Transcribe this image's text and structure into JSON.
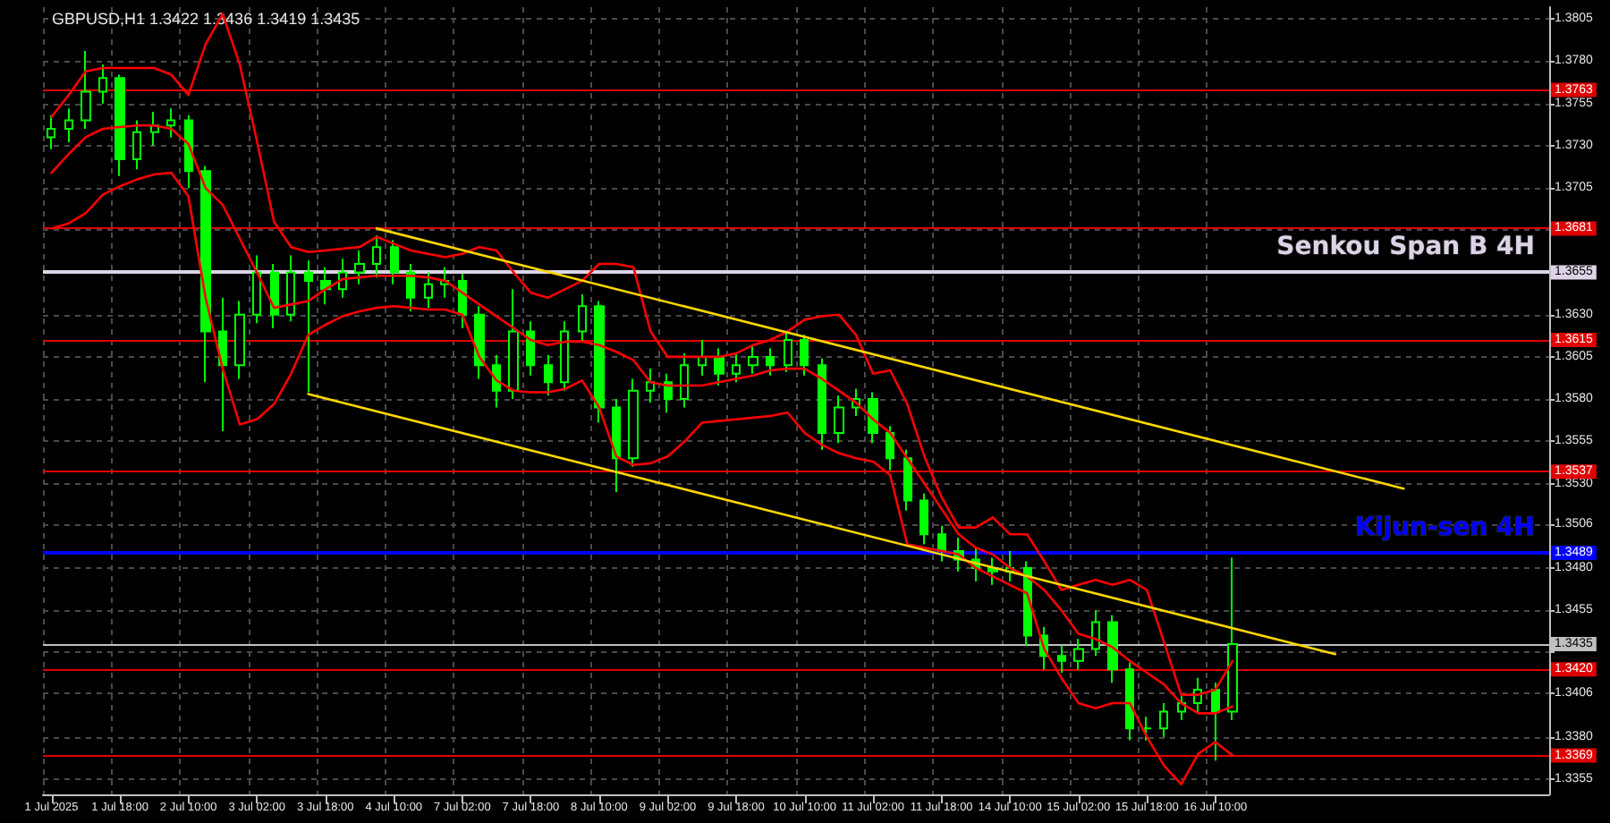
{
  "chart_data": {
    "type": "candlestick",
    "title": "GBPUSD,H1 1.3422 1.3436 1.3419 1.3435",
    "color": "#00ff00",
    "categories": [
      "1 Jul 2025",
      null,
      null,
      null,
      "1 Jul 18:00",
      null,
      null,
      null,
      "2 Jul 10:00",
      null,
      null,
      null,
      "3 Jul 02:00",
      null,
      null,
      null,
      "3 Jul 18:00",
      null,
      null,
      null,
      "4 Jul 10:00",
      null,
      null,
      null,
      "7 Jul 02:00",
      null,
      null,
      null,
      "7 Jul 18:00",
      null,
      null,
      null,
      "8 Jul 10:00",
      null,
      null,
      null,
      "9 Jul 02:00",
      null,
      null,
      null,
      "9 Jul 18:00",
      null,
      null,
      null,
      "10 Jul 10:00",
      null,
      null,
      null,
      "11 Jul 02:00",
      null,
      null,
      null,
      "11 Jul 18:00",
      null,
      null,
      null,
      "14 Jul 10:00",
      null,
      null,
      null,
      "15 Jul 02:00",
      null,
      null,
      null,
      "15 Jul 18:00",
      null,
      null,
      null,
      "16 Jul 10:00",
      null,
      null,
      null,
      null,
      null,
      null,
      null,
      null,
      null,
      null,
      null,
      null,
      null,
      null,
      null,
      null,
      null,
      null,
      null
    ],
    "ohlc": [
      [
        1.3735,
        1.3748,
        1.3728,
        1.374
      ],
      [
        1.374,
        1.3752,
        1.3732,
        1.3745
      ],
      [
        1.3745,
        1.3786,
        1.374,
        1.3762
      ],
      [
        1.3762,
        1.3778,
        1.3755,
        1.377
      ],
      [
        1.377,
        1.3772,
        1.3712,
        1.3722
      ],
      [
        1.3722,
        1.3745,
        1.3716,
        1.3738
      ],
      [
        1.3738,
        1.375,
        1.373,
        1.3742
      ],
      [
        1.3742,
        1.3752,
        1.3735,
        1.3745
      ],
      [
        1.3745,
        1.3748,
        1.3705,
        1.3715
      ],
      [
        1.3715,
        1.3718,
        1.359,
        1.362
      ],
      [
        1.362,
        1.364,
        1.3561,
        1.36
      ],
      [
        1.36,
        1.3638,
        1.3592,
        1.363
      ],
      [
        1.363,
        1.3665,
        1.3625,
        1.3655
      ],
      [
        1.3655,
        1.366,
        1.3622,
        1.363
      ],
      [
        1.363,
        1.3665,
        1.3626,
        1.3655
      ],
      [
        1.3655,
        1.3662,
        1.3584,
        1.365
      ],
      [
        1.365,
        1.3658,
        1.3636,
        1.3645
      ],
      [
        1.3645,
        1.3663,
        1.364,
        1.3655
      ],
      [
        1.3655,
        1.3668,
        1.3648,
        1.366
      ],
      [
        1.366,
        1.3677,
        1.3652,
        1.367
      ],
      [
        1.367,
        1.3674,
        1.3648,
        1.3655
      ],
      [
        1.3655,
        1.366,
        1.3632,
        1.364
      ],
      [
        1.364,
        1.3655,
        1.3634,
        1.3648
      ],
      [
        1.3648,
        1.3658,
        1.364,
        1.365
      ],
      [
        1.365,
        1.3654,
        1.3622,
        1.363
      ],
      [
        1.363,
        1.3635,
        1.3592,
        1.36
      ],
      [
        1.36,
        1.3606,
        1.3575,
        1.3585
      ],
      [
        1.3585,
        1.3645,
        1.358,
        1.362
      ],
      [
        1.362,
        1.3626,
        1.3594,
        1.36
      ],
      [
        1.36,
        1.3606,
        1.3582,
        1.359
      ],
      [
        1.359,
        1.3626,
        1.3585,
        1.362
      ],
      [
        1.362,
        1.3642,
        1.3614,
        1.3635
      ],
      [
        1.3635,
        1.3638,
        1.3566,
        1.3575
      ],
      [
        1.3575,
        1.358,
        1.3525,
        1.3545
      ],
      [
        1.3545,
        1.3592,
        1.354,
        1.3585
      ],
      [
        1.3585,
        1.3598,
        1.3578,
        1.359
      ],
      [
        1.359,
        1.3595,
        1.3572,
        1.358
      ],
      [
        1.358,
        1.3607,
        1.3575,
        1.36
      ],
      [
        1.36,
        1.3615,
        1.3594,
        1.3605
      ],
      [
        1.3605,
        1.361,
        1.3588,
        1.3595
      ],
      [
        1.3595,
        1.3607,
        1.359,
        1.36
      ],
      [
        1.36,
        1.3612,
        1.3595,
        1.3605
      ],
      [
        1.3605,
        1.361,
        1.3594,
        1.36
      ],
      [
        1.36,
        1.362,
        1.3596,
        1.3615
      ],
      [
        1.3615,
        1.3618,
        1.3594,
        1.36
      ],
      [
        1.36,
        1.3604,
        1.355,
        1.356
      ],
      [
        1.356,
        1.3582,
        1.3554,
        1.3575
      ],
      [
        1.3575,
        1.3586,
        1.357,
        1.358
      ],
      [
        1.358,
        1.3584,
        1.3554,
        1.356
      ],
      [
        1.356,
        1.3564,
        1.3538,
        1.3545
      ],
      [
        1.3545,
        1.355,
        1.3514,
        1.352
      ],
      [
        1.352,
        1.3524,
        1.3494,
        1.35
      ],
      [
        1.35,
        1.3505,
        1.3484,
        1.349
      ],
      [
        1.349,
        1.3498,
        1.3478,
        1.3485
      ],
      [
        1.3485,
        1.3492,
        1.3472,
        1.348
      ],
      [
        1.348,
        1.3486,
        1.347,
        1.3478
      ],
      [
        1.3478,
        1.349,
        1.3472,
        1.348
      ],
      [
        1.348,
        1.3484,
        1.3434,
        1.344
      ],
      [
        1.344,
        1.3445,
        1.342,
        1.3428
      ],
      [
        1.3428,
        1.3434,
        1.3418,
        1.3425
      ],
      [
        1.3425,
        1.3438,
        1.342,
        1.3432
      ],
      [
        1.3432,
        1.3455,
        1.3428,
        1.3448
      ],
      [
        1.3448,
        1.3452,
        1.3412,
        1.342
      ],
      [
        1.342,
        1.3424,
        1.3378,
        1.3385
      ],
      [
        1.3385,
        1.3392,
        1.3378,
        1.3385
      ],
      [
        1.3385,
        1.34,
        1.338,
        1.3395
      ],
      [
        1.3395,
        1.3405,
        1.339,
        1.34
      ],
      [
        1.34,
        1.3415,
        1.3394,
        1.3408
      ],
      [
        1.3408,
        1.3412,
        1.3366,
        1.3395
      ],
      [
        1.3395,
        1.3486,
        1.339,
        1.3435
      ],
      null,
      null,
      null,
      null,
      null,
      null,
      null,
      null,
      null,
      null,
      null,
      null,
      null,
      null,
      null,
      null,
      null,
      null
    ],
    "series": [
      {
        "type": "line",
        "color": "#ff0000",
        "values": [
          1.3747,
          1.376,
          1.3774,
          1.3776,
          1.3776,
          1.3776,
          1.3776,
          1.3772,
          1.376,
          1.379,
          1.3808,
          1.3778,
          1.3733,
          1.3685,
          1.367,
          1.3667,
          1.3668,
          1.3669,
          1.367,
          1.3676,
          1.3672,
          1.3668,
          1.3666,
          1.3664,
          1.3666,
          1.367,
          1.3668,
          1.3655,
          1.3643,
          1.364,
          1.3645,
          1.365,
          1.366,
          1.366,
          1.3658,
          1.362,
          1.3605,
          1.3605,
          1.3605,
          1.3605,
          1.3607,
          1.3612,
          1.3615,
          1.362,
          1.3627,
          1.3629,
          1.363,
          1.3618,
          1.3595,
          1.3597,
          1.3577,
          1.3546,
          1.3522,
          1.3504,
          1.3504,
          1.351,
          1.35,
          1.35,
          1.3484,
          1.3467,
          1.347,
          1.3473,
          1.347,
          1.3473,
          1.3467,
          1.3436,
          1.3405,
          1.3405,
          1.3408,
          1.3425,
          null,
          null,
          null,
          null,
          null,
          null,
          null,
          null,
          null,
          null,
          null,
          null,
          null,
          null,
          null,
          null,
          null,
          null
        ]
      },
      {
        "type": "line",
        "color": "#ff0000",
        "values": [
          1.3714,
          1.3725,
          1.3735,
          1.374,
          1.3741,
          1.3742,
          1.3742,
          1.374,
          1.3731,
          1.3705,
          1.3695,
          1.3675,
          1.3655,
          1.3634,
          1.3636,
          1.3638,
          1.3645,
          1.3651,
          1.3652,
          1.3653,
          1.3653,
          1.3653,
          1.3652,
          1.365,
          1.3643,
          1.3636,
          1.3629,
          1.3622,
          1.3615,
          1.3612,
          1.3614,
          1.3614,
          1.3612,
          1.3608,
          1.3603,
          1.359,
          1.3588,
          1.3588,
          1.3588,
          1.359,
          1.3592,
          1.3594,
          1.3597,
          1.3598,
          1.3598,
          1.3592,
          1.3585,
          1.3578,
          1.3568,
          1.356,
          1.3545,
          1.353,
          1.3515,
          1.35,
          1.3492,
          1.3488,
          1.348,
          1.3475,
          1.3467,
          1.3455,
          1.3441,
          1.3438,
          1.3433,
          1.3425,
          1.3418,
          1.3411,
          1.34,
          1.3394,
          1.3394,
          1.3398,
          null,
          null,
          null,
          null,
          null,
          null,
          null,
          null,
          null,
          null,
          null,
          null,
          null,
          null,
          null,
          null,
          null,
          null
        ]
      },
      {
        "type": "line",
        "color": "#ff0000",
        "values": [
          1.3681,
          1.3684,
          1.369,
          1.3701,
          1.3706,
          1.371,
          1.3713,
          1.3714,
          1.37,
          1.364,
          1.3598,
          1.3565,
          1.3568,
          1.3577,
          1.3595,
          1.3618,
          1.3624,
          1.3629,
          1.3632,
          1.3634,
          1.3635,
          1.3634,
          1.3633,
          1.3633,
          1.363,
          1.3605,
          1.3591,
          1.3585,
          1.3584,
          1.3584,
          1.3586,
          1.3591,
          1.3575,
          1.3546,
          1.3541,
          1.3542,
          1.3546,
          1.3555,
          1.3566,
          1.3567,
          1.3568,
          1.3569,
          1.357,
          1.3572,
          1.356,
          1.3553,
          1.3548,
          1.3545,
          1.3543,
          1.3535,
          1.3494,
          1.3492,
          1.349,
          1.3488,
          1.348,
          1.3475,
          1.347,
          1.3465,
          1.3432,
          1.3415,
          1.34,
          1.3397,
          1.34,
          1.34,
          1.338,
          1.3363,
          1.3352,
          1.337,
          1.3377,
          1.3369,
          null,
          null,
          null,
          null,
          null,
          null,
          null,
          null,
          null,
          null,
          null,
          null,
          null,
          null,
          null,
          null,
          null,
          null
        ]
      },
      {
        "type": "line",
        "color": "#ffd700",
        "values": [
          null,
          null,
          null,
          null,
          null,
          null,
          null,
          null,
          null,
          null,
          null,
          null,
          null,
          null,
          null,
          null,
          null,
          null,
          null,
          1.3681,
          null,
          null,
          null,
          null,
          null,
          null,
          null,
          null,
          null,
          null,
          null,
          null,
          null,
          null,
          null,
          null,
          null,
          null,
          null,
          null,
          null,
          null,
          null,
          null,
          null,
          null,
          null,
          null,
          null,
          null,
          null,
          null,
          null,
          null,
          null,
          null,
          null,
          null,
          null,
          null,
          null,
          null,
          null,
          null,
          null,
          null,
          null,
          null,
          null,
          null,
          null,
          null,
          null,
          null,
          null,
          null,
          null,
          null,
          null,
          1.3527,
          null,
          null,
          null,
          null,
          null,
          null,
          null,
          null
        ]
      },
      {
        "type": "line",
        "color": "#ffd700",
        "values": [
          null,
          null,
          null,
          null,
          null,
          null,
          null,
          null,
          null,
          null,
          null,
          null,
          null,
          null,
          null,
          1.3583,
          null,
          null,
          null,
          null,
          null,
          null,
          null,
          null,
          null,
          null,
          null,
          null,
          null,
          null,
          null,
          null,
          null,
          null,
          null,
          null,
          null,
          null,
          null,
          null,
          null,
          null,
          null,
          null,
          null,
          null,
          null,
          null,
          null,
          null,
          null,
          null,
          null,
          null,
          null,
          null,
          null,
          null,
          null,
          null,
          null,
          null,
          null,
          null,
          null,
          null,
          null,
          null,
          null,
          null,
          null,
          null,
          null,
          null,
          null,
          1.3429,
          null,
          null,
          null,
          null,
          null,
          null,
          null,
          null,
          null,
          null,
          null,
          null
        ]
      }
    ],
    "marker": "none",
    "ylim": [
      1.3346,
      1.3812
    ],
    "yticks": [
      1.3355,
      {
        "value": 1.338,
        "label": "1.3380"
      },
      1.3406,
      {
        "value": 1.343,
        "label": null
      },
      1.3455,
      {
        "value": 1.348,
        "label": "1.3480"
      },
      1.3506,
      {
        "value": 1.353,
        "label": "1.3530"
      },
      1.3555,
      {
        "value": 1.358,
        "label": "1.3580"
      },
      1.3605,
      {
        "value": 1.363,
        "label": "1.3630"
      },
      {
        "value": 1.3655,
        "label": null
      },
      {
        "value": 1.368,
        "label": null
      },
      1.3705,
      {
        "value": 1.373,
        "label": "1.3730"
      },
      1.3755,
      {
        "value": 1.378,
        "label": "1.3780"
      },
      1.3805
    ],
    "grid": true,
    "ref_lines": [
      {
        "axis": "y",
        "value": 1.3763,
        "color": "#e00000",
        "label": "1.3763"
      },
      {
        "axis": "y",
        "value": 1.3681,
        "color": "#e00000",
        "label": "1.3681"
      },
      {
        "axis": "y",
        "value": 1.3655,
        "color": "#dcd4e6",
        "label": "1.3655"
      },
      {
        "axis": "y",
        "value": 1.3615,
        "color": "#e00000",
        "label": "1.3615"
      },
      {
        "axis": "y",
        "value": 1.3537,
        "color": "#e00000",
        "label": "1.3537"
      },
      {
        "axis": "y",
        "value": 1.3489,
        "color": "#0000ff",
        "label": "1.3489"
      },
      {
        "axis": "y",
        "value": 1.3435,
        "color": "#c0c0c0",
        "label": "1.3435"
      },
      {
        "axis": "y",
        "value": 1.342,
        "color": "#e00000",
        "label": "1.3420"
      },
      {
        "axis": "y",
        "value": 1.3369,
        "color": "#e00000",
        "label": "1.3369"
      }
    ],
    "annotations": [
      {
        "text": "Senkou Span B 4H",
        "y": 1.3655
      },
      {
        "text": "Kijun-sen 4H",
        "y": 1.3489
      }
    ]
  }
}
